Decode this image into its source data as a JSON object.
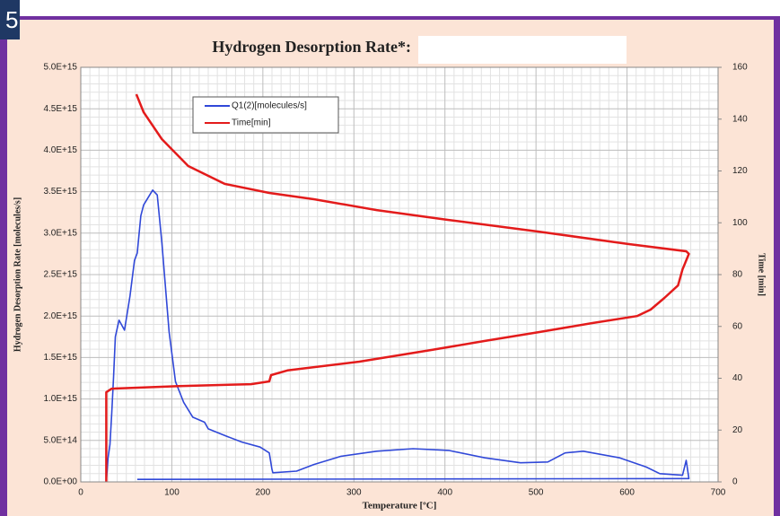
{
  "slide_number": "5",
  "chart_data": {
    "type": "line",
    "title": "Hydrogen Desorption Rate*:",
    "xlabel": "Temperature [ºC]",
    "ylabel": "Hydrogen Desorption Rate [molecules/s]",
    "y2label": "Time [min]",
    "xlim": [
      0,
      700
    ],
    "xticks": [
      0,
      100,
      200,
      300,
      400,
      500,
      600,
      700
    ],
    "ylim": [
      0,
      5000000000000000.0
    ],
    "yticks": [
      {
        "value": 0,
        "label": "0.0E+00"
      },
      {
        "value": 500000000000000.0,
        "label": "5.0E+14"
      },
      {
        "value": 1000000000000000.0,
        "label": "1.0E+15"
      },
      {
        "value": 1500000000000000.0,
        "label": "1.5E+15"
      },
      {
        "value": 2000000000000000.0,
        "label": "2.0E+15"
      },
      {
        "value": 2500000000000000.0,
        "label": "2.5E+15"
      },
      {
        "value": 3000000000000000.0,
        "label": "3.0E+15"
      },
      {
        "value": 3500000000000000.0,
        "label": "3.5E+15"
      },
      {
        "value": 4000000000000000.0,
        "label": "4.0E+15"
      },
      {
        "value": 4500000000000000.0,
        "label": "4.5E+15"
      },
      {
        "value": 5000000000000000.0,
        "label": "5.0E+15"
      }
    ],
    "y2lim": [
      0,
      160
    ],
    "y2ticks": [
      0,
      20,
      40,
      60,
      80,
      100,
      120,
      140,
      160
    ],
    "grid": true,
    "series": [
      {
        "name": "Q1(2)[molecules/s]",
        "color": "#3048d8",
        "axis": "y",
        "x": [
          28,
          30,
          32,
          34,
          36,
          38,
          42,
          48,
          54,
          59,
          62,
          66,
          69,
          79,
          84,
          89,
          97,
          104,
          113,
          123,
          136,
          140,
          158,
          177,
          197,
          207,
          210,
          211,
          237,
          256,
          286,
          325,
          365,
          404,
          444,
          483,
          513,
          532,
          552,
          592,
          621,
          636,
          661,
          665,
          668,
          62
        ],
        "values": [
          0,
          290000000000000.0,
          450000000000000.0,
          830000000000000.0,
          1260000000000000.0,
          1750000000000000.0,
          1950000000000000.0,
          1830000000000000.0,
          2240000000000000.0,
          2670000000000000.0,
          2760000000000000.0,
          3210000000000000.0,
          3340000000000000.0,
          3520000000000000.0,
          3460000000000000.0,
          2890000000000000.0,
          1810000000000000.0,
          1210000000000000.0,
          960000000000000.0,
          780000000000000.0,
          720000000000000.0,
          640000000000000.0,
          560000000000000.0,
          480000000000000.0,
          420000000000000.0,
          350000000000000.0,
          150000000000000.0,
          110000000000000.0,
          130000000000000.0,
          210000000000000.0,
          310000000000000.0,
          370000000000000.0,
          400000000000000.0,
          380000000000000.0,
          290000000000000.0,
          230000000000000.0,
          240000000000000.0,
          350000000000000.0,
          370000000000000.0,
          290000000000000.0,
          180000000000000.0,
          100000000000000.0,
          80000000000000.0,
          260000000000000.0,
          40000000000000.0,
          30000000000000.0
        ]
      },
      {
        "name": "Time[min]",
        "color": "#e31b1b",
        "axis": "y2",
        "x": [
          28,
          28,
          34,
          108,
          187,
          207,
          209,
          227,
          306,
          385,
          444,
          503,
          562,
          611,
          626,
          641,
          656,
          661,
          668,
          665,
          601,
          503,
          404,
          325,
          256,
          207,
          158,
          118,
          89,
          69,
          61
        ],
        "values": [
          0,
          34.6,
          36,
          37,
          37.7,
          38.8,
          41.2,
          43,
          46.4,
          50.9,
          54.4,
          57.8,
          61.3,
          64,
          66.5,
          71,
          75.8,
          82,
          88,
          89,
          91.8,
          96.6,
          101.1,
          104.9,
          109.1,
          111.5,
          115,
          121.9,
          132.3,
          142.7,
          149.6
        ]
      }
    ]
  }
}
